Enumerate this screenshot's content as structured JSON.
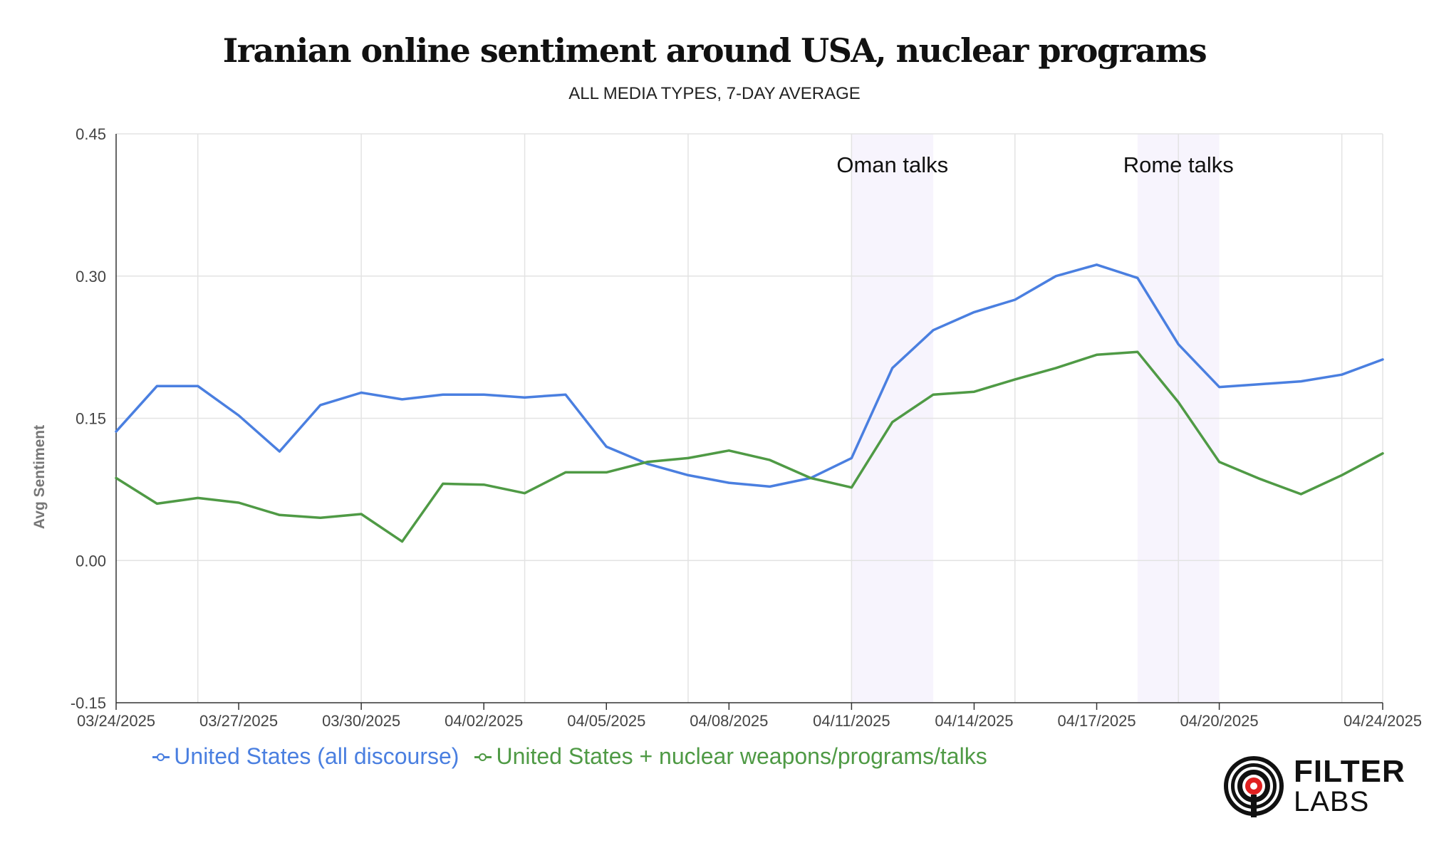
{
  "chart_data": {
    "type": "line",
    "title": "Iranian online sentiment around USA, nuclear programs",
    "subtitle": "ALL MEDIA TYPES, 7-DAY AVERAGE",
    "xlabel": "",
    "ylabel": "Avg Sentiment",
    "ylim": [
      -0.15,
      0.45
    ],
    "yticks": [
      "0.45",
      "0.30",
      "0.15",
      "0.00",
      "-0.15"
    ],
    "x": [
      "03/24/2025",
      "03/25/2025",
      "03/26/2025",
      "03/27/2025",
      "03/28/2025",
      "03/29/2025",
      "03/30/2025",
      "03/31/2025",
      "04/01/2025",
      "04/02/2025",
      "04/03/2025",
      "04/04/2025",
      "04/05/2025",
      "04/06/2025",
      "04/07/2025",
      "04/08/2025",
      "04/09/2025",
      "04/10/2025",
      "04/11/2025",
      "04/12/2025",
      "04/13/2025",
      "04/14/2025",
      "04/15/2025",
      "04/16/2025",
      "04/17/2025",
      "04/18/2025",
      "04/19/2025",
      "04/20/2025",
      "04/21/2025",
      "04/22/2025",
      "04/23/2025",
      "04/24/2025"
    ],
    "xtick_labels": [
      "03/24/2025",
      "03/27/2025",
      "03/30/2025",
      "04/02/2025",
      "04/05/2025",
      "04/08/2025",
      "04/11/2025",
      "04/14/2025",
      "04/17/2025",
      "04/20/2025",
      "04/24/2025"
    ],
    "grid": true,
    "legend_position": "bottom",
    "series": [
      {
        "name": "United States (all discourse)",
        "color": "#4a7fe0",
        "values": [
          0.136,
          0.184,
          0.184,
          0.153,
          0.115,
          0.164,
          0.177,
          0.17,
          0.175,
          0.175,
          0.172,
          0.175,
          0.12,
          0.102,
          0.09,
          0.082,
          0.078,
          0.087,
          0.108,
          0.203,
          0.243,
          0.262,
          0.275,
          0.3,
          0.312,
          0.298,
          0.228,
          0.183,
          0.186,
          0.189,
          0.196,
          0.212
        ]
      },
      {
        "name": "United States + nuclear weapons/programs/talks",
        "color": "#4f9a45",
        "values": [
          0.087,
          0.06,
          0.066,
          0.061,
          0.048,
          0.045,
          0.049,
          0.02,
          0.081,
          0.08,
          0.071,
          0.093,
          0.093,
          0.104,
          0.108,
          0.116,
          0.106,
          0.087,
          0.077,
          0.146,
          0.175,
          0.178,
          0.191,
          0.203,
          0.217,
          0.22,
          0.167,
          0.104,
          0.086,
          0.07,
          0.09,
          0.113
        ]
      }
    ],
    "annotations": [
      {
        "text": "Oman talks",
        "x_start": "04/11/2025",
        "x_end": "04/13/2025"
      },
      {
        "text": "Rome talks",
        "x_start": "04/18/2025",
        "x_end": "04/20/2025"
      }
    ],
    "band_color": "#f7f4fd"
  },
  "logo": {
    "word1": "FILTER",
    "word2": "LABS"
  }
}
